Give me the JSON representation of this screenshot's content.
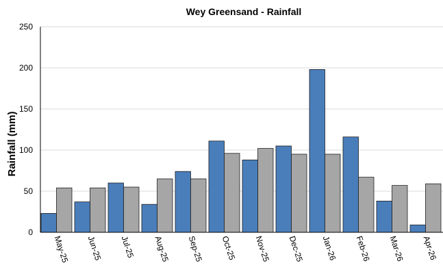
{
  "chart_data": {
    "type": "bar",
    "title": "Wey Greensand - Rainfall",
    "xlabel": "",
    "ylabel": "Rainfall (mm)",
    "ylim": [
      0,
      250
    ],
    "yticks": [
      0,
      50,
      100,
      150,
      200,
      250
    ],
    "grid": true,
    "legend": "none",
    "categories": [
      "May-25",
      "Jun-25",
      "Jul-25",
      "Aug-25",
      "Sep-25",
      "Oct-25",
      "Nov-25",
      "Dec-25",
      "Jan-26",
      "Feb-26",
      "Mar-26",
      "Apr-26"
    ],
    "series": [
      {
        "values": [
          23,
          37,
          60,
          34,
          74,
          111,
          88,
          105,
          198,
          116,
          38,
          9
        ],
        "color": "#4a7ebb"
      },
      {
        "values": [
          54,
          54,
          55,
          65,
          65,
          96,
          102,
          95,
          95,
          67,
          57,
          59
        ],
        "color": "#a6a6a6"
      }
    ]
  }
}
